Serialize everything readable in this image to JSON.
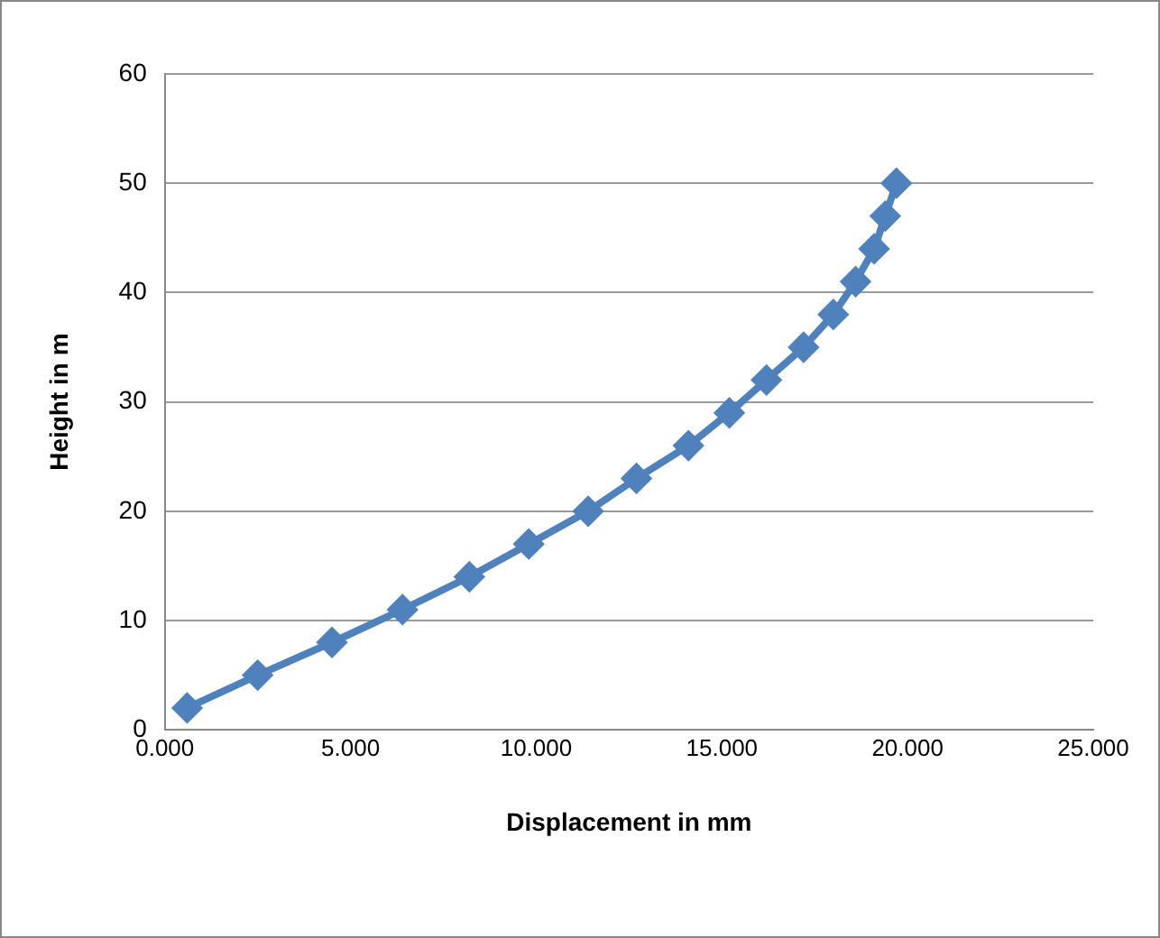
{
  "chart_data": {
    "type": "line",
    "xlabel": "Displacement in mm",
    "ylabel": "Height in m",
    "xlim": [
      0,
      25
    ],
    "xticks": [
      {
        "value": 0,
        "label": "0.000"
      },
      {
        "value": 5,
        "label": "5.000"
      },
      {
        "value": 10,
        "label": "10.000"
      },
      {
        "value": 15,
        "label": "15.000"
      },
      {
        "value": 20,
        "label": "20.000"
      },
      {
        "value": 25,
        "label": "25.000"
      }
    ],
    "ylim": [
      0,
      60
    ],
    "yticks": [
      0,
      10,
      20,
      30,
      40,
      50,
      60
    ],
    "grid": "y",
    "legend": false,
    "marker": "diamond",
    "line_style": "solid",
    "series": [
      {
        "color": "#4f81bd",
        "x": [
          0.6,
          2.5,
          4.5,
          6.4,
          8.2,
          9.8,
          11.4,
          12.7,
          14.1,
          15.2,
          16.2,
          17.2,
          18.0,
          18.6,
          19.1,
          19.4,
          19.7
        ],
        "values": [
          2,
          5,
          8,
          11,
          14,
          17,
          20,
          23,
          26,
          29,
          32,
          35,
          38,
          41,
          44,
          47,
          50
        ]
      }
    ]
  }
}
